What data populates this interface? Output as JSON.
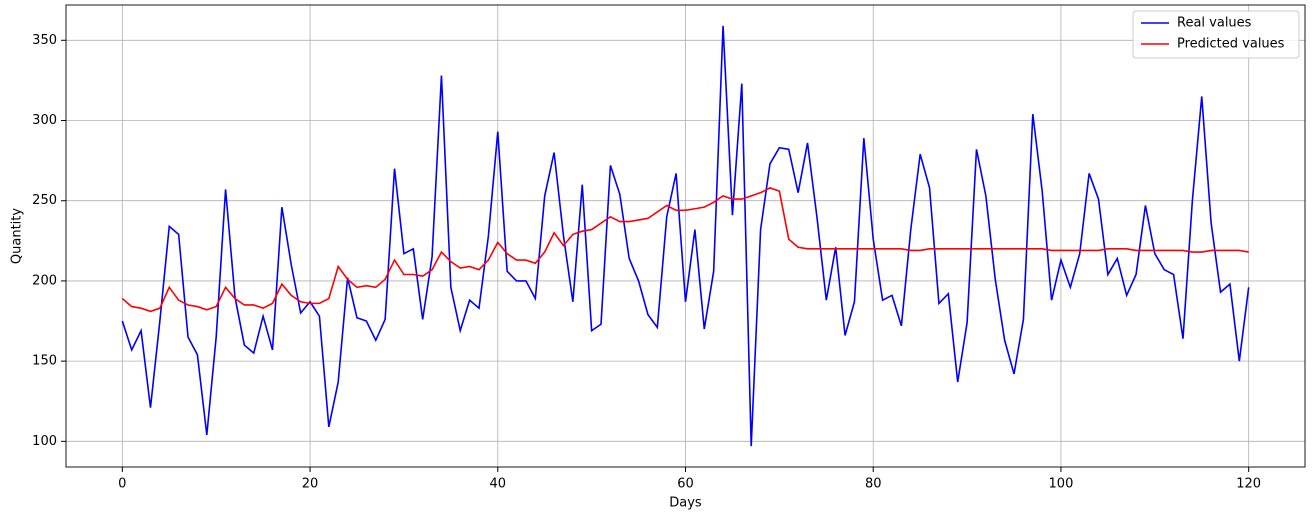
{
  "chart_data": {
    "type": "line",
    "x": [
      0,
      1,
      2,
      3,
      4,
      5,
      6,
      7,
      8,
      9,
      10,
      11,
      12,
      13,
      14,
      15,
      16,
      17,
      18,
      19,
      20,
      21,
      22,
      23,
      24,
      25,
      26,
      27,
      28,
      29,
      30,
      31,
      32,
      33,
      34,
      35,
      36,
      37,
      38,
      39,
      40,
      41,
      42,
      43,
      44,
      45,
      46,
      47,
      48,
      49,
      50,
      51,
      52,
      53,
      54,
      55,
      56,
      57,
      58,
      59,
      60,
      61,
      62,
      63,
      64,
      65,
      66,
      67,
      68,
      69,
      70,
      71,
      72,
      73,
      74,
      75,
      76,
      77,
      78,
      79,
      80,
      81,
      82,
      83,
      84,
      85,
      86,
      87,
      88,
      89,
      90,
      91,
      92,
      93,
      94,
      95,
      96,
      97,
      98,
      99,
      100,
      101,
      102,
      103,
      104,
      105,
      106,
      107,
      108,
      109,
      110,
      111,
      112,
      113,
      114,
      115,
      116,
      117,
      118,
      119,
      120
    ],
    "series": [
      {
        "name": "Real values",
        "color": "#0000ff",
        "values": [
          175,
          157,
          169,
          121,
          175,
          234,
          229,
          165,
          154,
          104,
          165,
          257,
          190,
          160,
          155,
          178,
          157,
          246,
          210,
          180,
          187,
          178,
          109,
          137,
          202,
          177,
          175,
          163,
          176,
          270,
          217,
          220,
          176,
          215,
          328,
          196,
          169,
          188,
          183,
          228,
          293,
          206,
          200,
          200,
          189,
          253,
          280,
          228,
          187,
          260,
          169,
          173,
          272,
          254,
          214,
          200,
          179,
          171,
          240,
          267,
          187,
          232,
          170,
          206,
          359,
          241,
          323,
          97,
          232,
          273,
          283,
          282,
          255,
          286,
          240,
          188,
          221,
          166,
          187,
          289,
          226,
          188,
          191,
          172,
          232,
          279,
          258,
          186,
          192,
          137,
          174,
          282,
          253,
          201,
          163,
          142,
          176,
          304,
          256,
          188,
          213,
          196,
          217,
          267,
          251,
          204,
          214,
          191,
          204,
          247,
          217,
          207,
          204,
          164,
          250,
          315,
          236,
          193,
          198,
          150,
          196
        ]
      },
      {
        "name": "Predicted values",
        "color": "#ff0000",
        "values": [
          189,
          184,
          183,
          181,
          183,
          196,
          188,
          185,
          184,
          182,
          184,
          196,
          189,
          185,
          185,
          183,
          186,
          198,
          191,
          187,
          186,
          186,
          189,
          209,
          201,
          196,
          197,
          196,
          201,
          213,
          204,
          204,
          203,
          207,
          218,
          212,
          208,
          209,
          207,
          213,
          224,
          217,
          213,
          213,
          211,
          218,
          230,
          222,
          229,
          231,
          232,
          236,
          240,
          237,
          237,
          238,
          239,
          243,
          247,
          244,
          244,
          245,
          246,
          249,
          253,
          251,
          251,
          253,
          255,
          258,
          256,
          226,
          221,
          220,
          220,
          220,
          220,
          220,
          220,
          220,
          220,
          220,
          220,
          220,
          219,
          219,
          220,
          220,
          220,
          220,
          220,
          220,
          220,
          220,
          220,
          220,
          220,
          220,
          220,
          219,
          219,
          219,
          219,
          219,
          219,
          220,
          220,
          220,
          219,
          219,
          219,
          219,
          219,
          219,
          218,
          218,
          219,
          219,
          219,
          219,
          218
        ]
      }
    ],
    "xlabel": "Days",
    "ylabel": "Quantity",
    "xlim": [
      -6,
      126
    ],
    "ylim": [
      84,
      372
    ],
    "xticks": [
      0,
      20,
      40,
      60,
      80,
      100,
      120
    ],
    "yticks": [
      100,
      150,
      200,
      250,
      300,
      350
    ],
    "grid": true,
    "legend": "upper right"
  }
}
